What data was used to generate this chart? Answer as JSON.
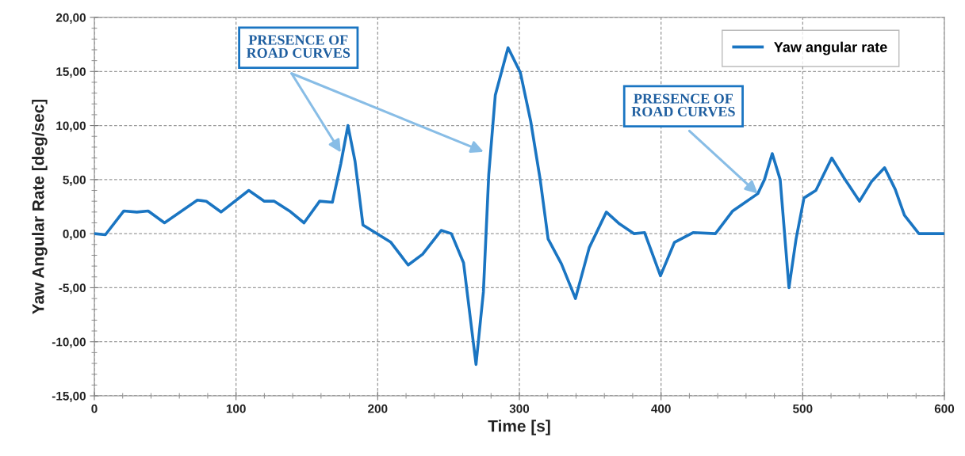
{
  "chart_data": {
    "type": "line",
    "xlabel": "Time [s]",
    "ylabel": "Yaw Angular Rate [deg/sec]",
    "series": [
      {
        "name": "Yaw angular rate",
        "color": "#1a75c2",
        "x": [
          0,
          7.8,
          20.8,
          30,
          38,
          49.5,
          72.7,
          79,
          89.4,
          109,
          120,
          127,
          137.7,
          148,
          159,
          168,
          174,
          179,
          184,
          189.6,
          200.7,
          209.3,
          221.5,
          231.7,
          244.8,
          252,
          260.6,
          269.4,
          274.6,
          278.4,
          283,
          292,
          300.7,
          308,
          314.7,
          320.3,
          329.7,
          339.6,
          349.3,
          361.4,
          370.7,
          381,
          388.4,
          399.6,
          409.5,
          422.6,
          438.4,
          450.6,
          468.3,
          473,
          478.5,
          484.1,
          490.3,
          495.3,
          500.9,
          509.3,
          520.5,
          529.9,
          540.1,
          548.5,
          557.8,
          565.3,
          571.8,
          582,
          599.8
        ],
        "values": [
          0,
          -0.1,
          2.1,
          2.0,
          2.1,
          1.0,
          3.1,
          3.0,
          2.0,
          4.0,
          3.0,
          3.0,
          2.1,
          1.0,
          3.0,
          2.9,
          6.5,
          10.0,
          6.7,
          0.8,
          -0.1,
          -0.8,
          -2.9,
          -1.9,
          0.3,
          0,
          -2.7,
          -12.1,
          -5.4,
          5.5,
          12.8,
          17.2,
          14.9,
          10.4,
          5.0,
          -0.5,
          -2.8,
          -6.0,
          -1.3,
          2.0,
          0.9,
          0,
          0.1,
          -3.9,
          -0.8,
          0.1,
          0,
          2.1,
          3.7,
          5.0,
          7.4,
          5.0,
          -5.0,
          -0.5,
          3.3,
          4.0,
          7.0,
          5.0,
          3.0,
          4.8,
          6.1,
          4.1,
          1.7,
          0,
          0
        ]
      }
    ],
    "xlim": [
      0,
      600
    ],
    "xticks": [
      0,
      100,
      200,
      300,
      400,
      500,
      600
    ],
    "ylim": [
      -15,
      20
    ],
    "yticks": [
      {
        "value": -15,
        "label": "-15,00"
      },
      {
        "value": -10,
        "label": "-10,00"
      },
      {
        "value": -5,
        "label": "-5,00"
      },
      {
        "value": 0,
        "label": "0,00"
      },
      {
        "value": 5,
        "label": "5,00"
      },
      {
        "value": 10,
        "label": "10,00"
      },
      {
        "value": 15,
        "label": "15,00"
      },
      {
        "value": 20,
        "label": "20,00"
      }
    ],
    "grid": true,
    "legend": "top right",
    "line_style": "solid",
    "marker": "none",
    "annotations": [
      {
        "text": "PRESENCE OF\nROAD CURVES",
        "x": 174,
        "y": 7.5
      },
      {
        "text": "PRESENCE OF\nROAD CURVES",
        "x": 468.3,
        "y": 3.7
      }
    ]
  }
}
